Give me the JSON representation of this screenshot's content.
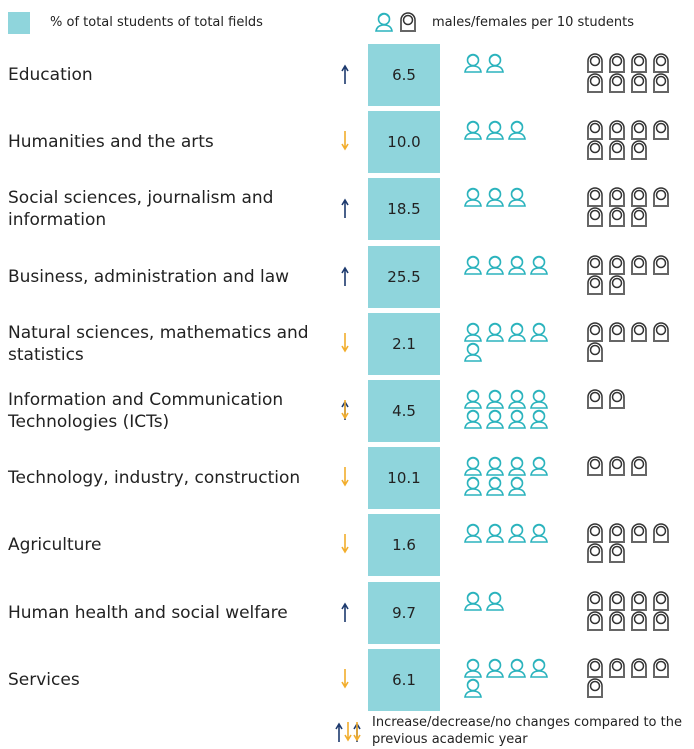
{
  "legend": {
    "share": "% of total students of total fields",
    "people": "males/females per 10 students",
    "trend": "Increase/decrease/no changes compared to the previous academic year"
  },
  "rows": [
    {
      "label": "Education",
      "trend": "up",
      "share": "6.5",
      "males": 2,
      "females": 8
    },
    {
      "label": "Humanities and the arts",
      "trend": "down",
      "share": "10.0",
      "males": 3,
      "females": 7
    },
    {
      "label": "Social sciences, journalism and information",
      "trend": "up",
      "share": "18.5",
      "males": 3,
      "females": 7
    },
    {
      "label": "Business, administration and law",
      "trend": "up",
      "share": "25.5",
      "males": 4,
      "females": 6
    },
    {
      "label": "Natural sciences, mathematics and statistics",
      "trend": "down",
      "share": "2.1",
      "males": 5,
      "females": 5
    },
    {
      "label": "Information and Communication Technologies (ICTs)",
      "trend": "same",
      "share": "4.5",
      "males": 8,
      "females": 2
    },
    {
      "label": "Technology, industry, construction",
      "trend": "down",
      "share": "10.1",
      "males": 7,
      "females": 3
    },
    {
      "label": "Agriculture",
      "trend": "down",
      "share": "1.6",
      "males": 4,
      "females": 6
    },
    {
      "label": "Human health and social welfare",
      "trend": "up",
      "share": "9.7",
      "males": 2,
      "females": 8
    },
    {
      "label": "Services",
      "trend": "down",
      "share": "6.1",
      "males": 5,
      "females": 5
    }
  ]
}
